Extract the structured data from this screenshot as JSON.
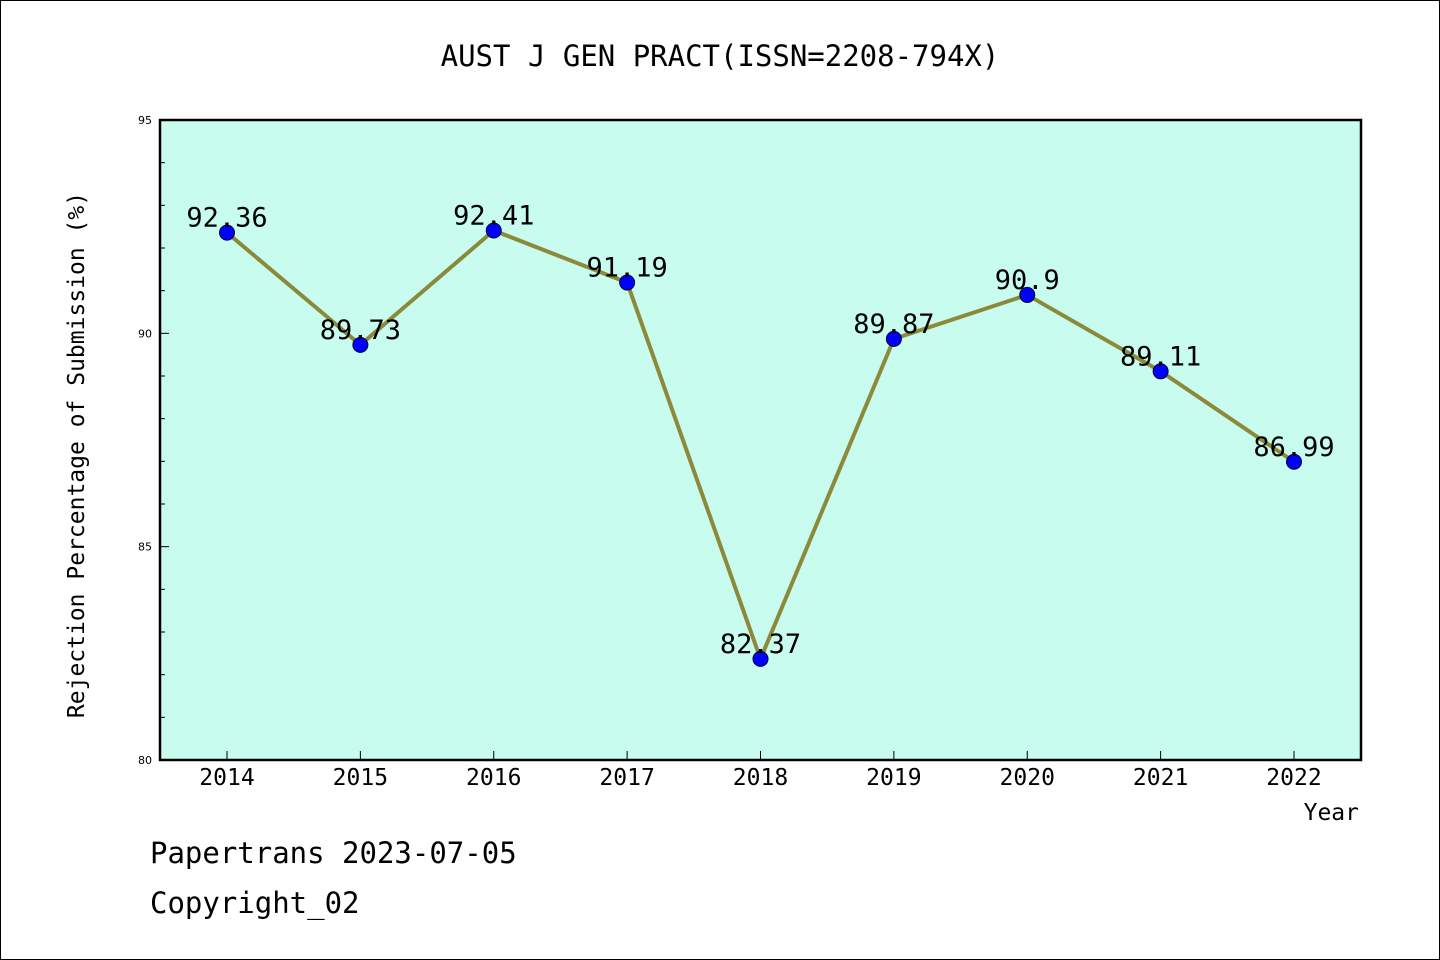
{
  "chart_data": {
    "type": "line",
    "title": "AUST J GEN PRACT(ISSN=2208-794X)",
    "xlabel": "Year",
    "ylabel": "Rejection Percentage of Submission (%)",
    "categories": [
      "2014",
      "2015",
      "2016",
      "2017",
      "2018",
      "2019",
      "2020",
      "2021",
      "2022"
    ],
    "values": [
      92.36,
      89.73,
      92.41,
      91.19,
      82.37,
      89.87,
      90.9,
      89.11,
      86.99
    ],
    "data_labels": [
      "92.36",
      "89.73",
      "92.41",
      "91.19",
      "82.37",
      "89.87",
      "90.9",
      "89.11",
      "86.99"
    ],
    "ylim": [
      80,
      95
    ],
    "yticks": [
      80,
      85,
      90,
      95
    ],
    "ytick_labels": [
      "80",
      "85",
      "90",
      "95"
    ],
    "grid": false,
    "legend": "none",
    "colors": {
      "plot_background": "#c8fcee",
      "line": "#8c8a3a",
      "marker": "#0000ff"
    }
  },
  "footer": {
    "line1": "Papertrans 2023-07-05",
    "line2": "Copyright_02"
  }
}
